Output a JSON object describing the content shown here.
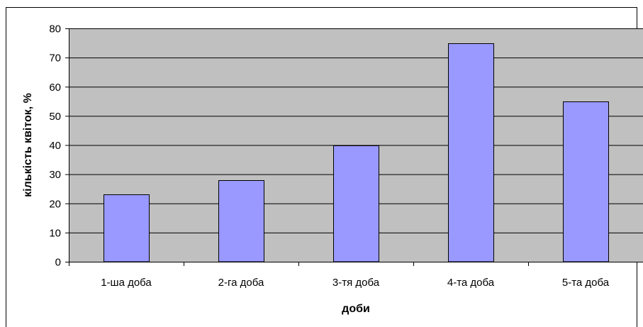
{
  "chart_data": {
    "type": "bar",
    "categories": [
      "1-ша доба",
      "2-га доба",
      "3-тя доба",
      "4-та доба",
      "5-та доба"
    ],
    "values": [
      23,
      28,
      40,
      75,
      55
    ],
    "xlabel": "доби",
    "ylabel": "кількість квіток, %",
    "ylim": [
      0,
      80
    ],
    "yticks": [
      0,
      10,
      20,
      30,
      40,
      50,
      60,
      70,
      80
    ],
    "grid": true,
    "legend": "none",
    "colors": {
      "bar_fill": "#9999ff",
      "plot_background": "#c0c0c0",
      "gridline": "#000000",
      "outline": "#000000"
    }
  }
}
